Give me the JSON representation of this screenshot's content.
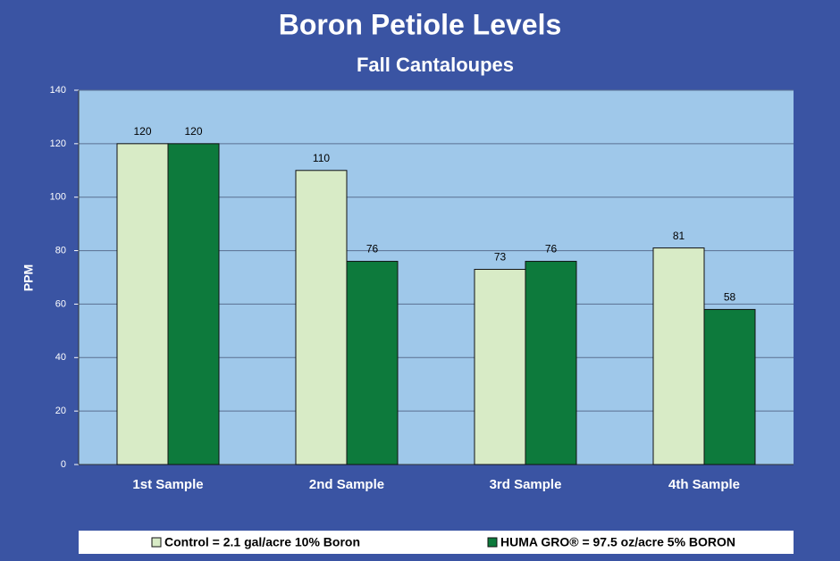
{
  "chart_data": {
    "type": "bar",
    "title": "Boron Petiole Levels",
    "subtitle": "Fall Cantaloupes",
    "y_label": "PPM",
    "categories": [
      "1st Sample",
      "2nd Sample",
      "3rd Sample",
      "4th Sample"
    ],
    "series": [
      {
        "name": "Control = 2.1 gal/acre 10% Boron",
        "color": "#d8ebc6",
        "values": [
          120,
          110,
          73,
          81
        ]
      },
      {
        "name": "HUMA GRO® = 97.5 oz/acre 5% BORON",
        "color": "#0d7a3c",
        "values": [
          120,
          76,
          76,
          58
        ]
      }
    ],
    "ylim": [
      0,
      140
    ],
    "yticks": [
      0,
      20,
      40,
      60,
      80,
      100,
      120,
      140
    ],
    "grid": true,
    "legend": "bottom"
  }
}
